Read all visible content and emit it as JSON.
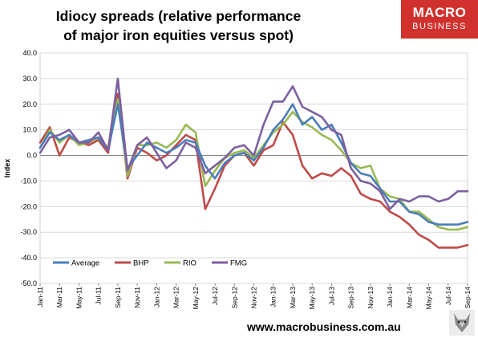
{
  "header": {
    "title_line1": "Idiocy spreads (relative performance",
    "title_line2": "of major iron equities versus spot)"
  },
  "logo": {
    "line1": "MACRO",
    "line2": "BUSINESS",
    "color": "#d0312d"
  },
  "footer": {
    "url": "www.macrobusiness.com.au"
  },
  "chart_data": {
    "type": "line",
    "title": "Idiocy spreads (relative performance of major iron equities versus spot)",
    "ylabel": "Index",
    "ylim": [
      -50,
      40
    ],
    "yticks": [
      "40.0",
      "30.0",
      "20.0",
      "10.0",
      "0.0",
      "-10.0",
      "-20.0",
      "-30.0",
      "-40.0",
      "-50.0"
    ],
    "xlim": [
      0,
      44
    ],
    "xticks": [
      "Jan-11",
      "Mar-11",
      "May-11",
      "Jul-11",
      "Sep-11",
      "Nov-11",
      "Jan-12",
      "Mar-12",
      "May-12",
      "Jul-12",
      "Sep-12",
      "Nov-12",
      "Jan-13",
      "Mar-13",
      "May-13",
      "Jul-13",
      "Sep-13",
      "Nov-13",
      "Jan-14",
      "Mar-14",
      "May-14",
      "Jul-14",
      "Sep-14"
    ],
    "grid": "horizontal",
    "legend_position": "bottom-left",
    "x": [
      0,
      1,
      2,
      3,
      4,
      5,
      6,
      7,
      8,
      9,
      10,
      11,
      12,
      13,
      14,
      15,
      16,
      17,
      18,
      19,
      20,
      21,
      22,
      23,
      24,
      25,
      26,
      27,
      28,
      29,
      30,
      31,
      32,
      33,
      34,
      35,
      36,
      37,
      38,
      39,
      40,
      41,
      42,
      43,
      44
    ],
    "series": [
      {
        "name": "Average",
        "color": "#4a7ebb",
        "values": [
          3,
          9,
          6,
          8,
          5,
          6,
          7,
          2,
          20,
          -5,
          0,
          5,
          3,
          1,
          3,
          6,
          5,
          -4,
          -9,
          -3,
          0,
          1,
          -2,
          3,
          10,
          14,
          20,
          12,
          15,
          10,
          12,
          5,
          -3,
          -7,
          -8,
          -13,
          -18,
          -18,
          -22,
          -23,
          -26,
          -27,
          -27,
          -27,
          -26
        ]
      },
      {
        "name": "BHP",
        "color": "#be4b48",
        "values": [
          5,
          11,
          0,
          7,
          5,
          4,
          6,
          1,
          24,
          -9,
          3,
          1,
          -2,
          0,
          4,
          8,
          6,
          -21,
          -13,
          -4,
          0,
          1,
          -4,
          2,
          4,
          13,
          8,
          -4,
          -9,
          -7,
          -8,
          -5,
          -8,
          -15,
          -17,
          -18,
          -22,
          -24,
          -27,
          -31,
          -33,
          -36,
          -36,
          -36,
          -35
        ]
      },
      {
        "name": "RIO",
        "color": "#98b954",
        "values": [
          3,
          10,
          5,
          8,
          4,
          5,
          7,
          3,
          22,
          -8,
          4,
          4,
          5,
          3,
          6,
          12,
          9,
          -12,
          -6,
          -1,
          1,
          2,
          -1,
          4,
          9,
          12,
          17,
          13,
          11,
          8,
          6,
          2,
          -3,
          -5,
          -4,
          -13,
          -16,
          -17,
          -22,
          -22,
          -25,
          -28,
          -29,
          -29,
          -28
        ]
      },
      {
        "name": "FMG",
        "color": "#7d60a0",
        "values": [
          1,
          7,
          8,
          10,
          5,
          5,
          9,
          2,
          30,
          -6,
          4,
          7,
          1,
          -5,
          -2,
          5,
          3,
          -7,
          -4,
          -1,
          3,
          4,
          0,
          12,
          21,
          21,
          27,
          19,
          17,
          15,
          10,
          8,
          -5,
          -10,
          -11,
          -14,
          -21,
          -17,
          -18,
          -16,
          -16,
          -18,
          -17,
          -14,
          -14
        ]
      }
    ]
  }
}
